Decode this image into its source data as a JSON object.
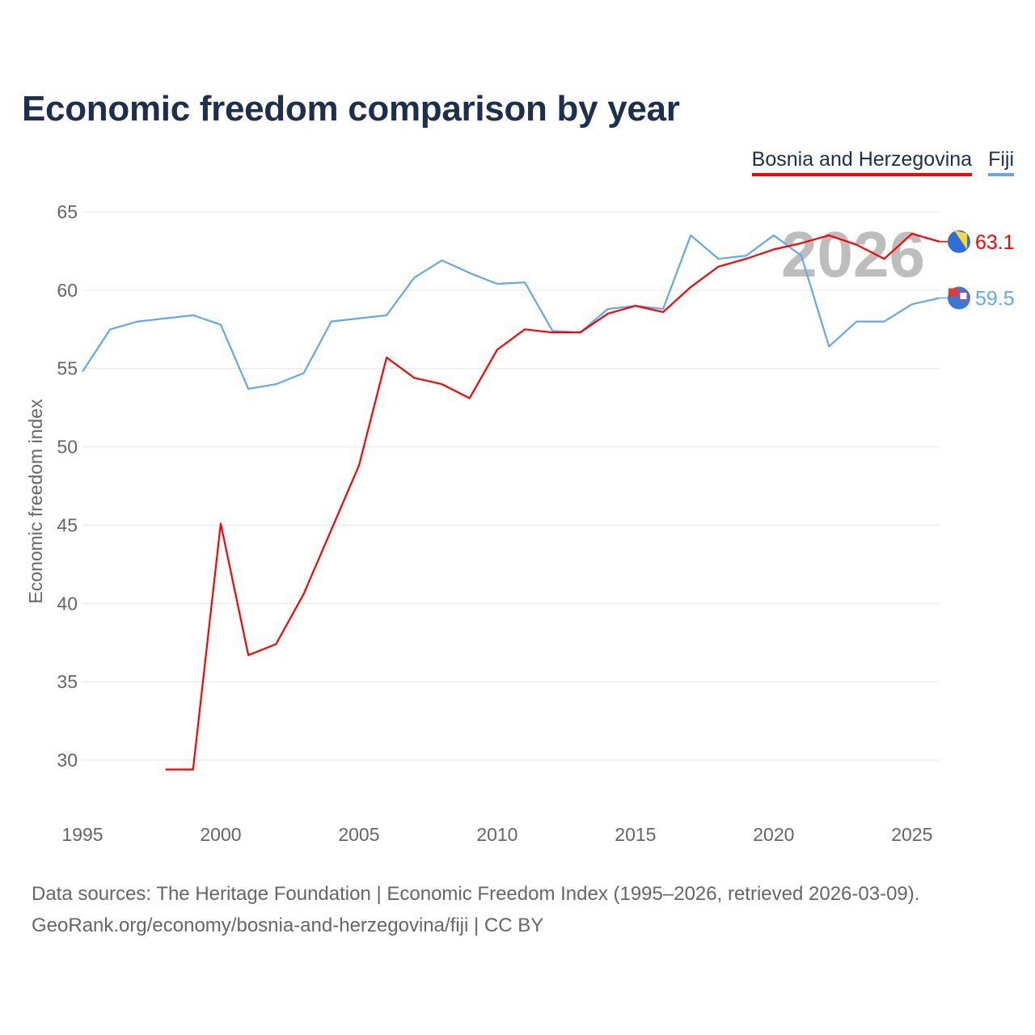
{
  "chart_data": {
    "type": "line",
    "title": "Economic freedom comparison by year",
    "xlabel": "",
    "ylabel": "Economic freedom index",
    "xlim": [
      1995,
      2026
    ],
    "ylim": [
      30,
      65
    ],
    "xticks": [
      1995,
      2000,
      2005,
      2010,
      2015,
      2020,
      2025
    ],
    "yticks": [
      30,
      35,
      40,
      45,
      50,
      55,
      60,
      65
    ],
    "grid": true,
    "legend_position": "top-right",
    "year_watermark": "2026",
    "series": [
      {
        "name": "Bosnia and Herzegovina",
        "color": "#ff0000",
        "end_label": "63.1",
        "x": [
          1998,
          1999,
          2000,
          2001,
          2002,
          2003,
          2004,
          2005,
          2006,
          2007,
          2008,
          2009,
          2010,
          2011,
          2012,
          2013,
          2014,
          2015,
          2016,
          2017,
          2018,
          2019,
          2020,
          2021,
          2022,
          2023,
          2024,
          2025,
          2026
        ],
        "values": [
          29.4,
          29.4,
          45.1,
          36.7,
          37.4,
          40.6,
          44.7,
          48.8,
          55.7,
          54.4,
          54.0,
          53.1,
          56.2,
          57.5,
          57.3,
          57.3,
          58.5,
          59.0,
          58.6,
          60.2,
          61.5,
          62.0,
          62.6,
          63.0,
          63.5,
          62.9,
          62.0,
          63.6,
          63.1
        ]
      },
      {
        "name": "Fiji",
        "color": "#64a8ec",
        "end_label": "59.5",
        "x": [
          1995,
          1996,
          1997,
          1998,
          1999,
          2000,
          2001,
          2002,
          2003,
          2004,
          2005,
          2006,
          2007,
          2008,
          2009,
          2010,
          2011,
          2012,
          2013,
          2014,
          2015,
          2016,
          2017,
          2018,
          2019,
          2020,
          2021,
          2022,
          2023,
          2024,
          2025,
          2026
        ],
        "values": [
          54.8,
          57.5,
          58.0,
          58.2,
          58.4,
          57.8,
          53.7,
          54.0,
          54.7,
          58.0,
          58.2,
          58.4,
          60.8,
          61.9,
          61.1,
          60.4,
          60.5,
          57.4,
          57.3,
          58.8,
          59.0,
          58.8,
          63.5,
          62.0,
          62.2,
          63.5,
          62.2,
          56.4,
          58.0,
          58.0,
          59.1,
          59.5
        ]
      }
    ]
  },
  "source": {
    "line1": "Data sources: The Heritage Foundation | Economic Freedom Index (1995–2026, retrieved 2026-03-09).",
    "line2": "GeoRank.org/economy/bosnia-and-herzegovina/fiji | CC BY"
  }
}
